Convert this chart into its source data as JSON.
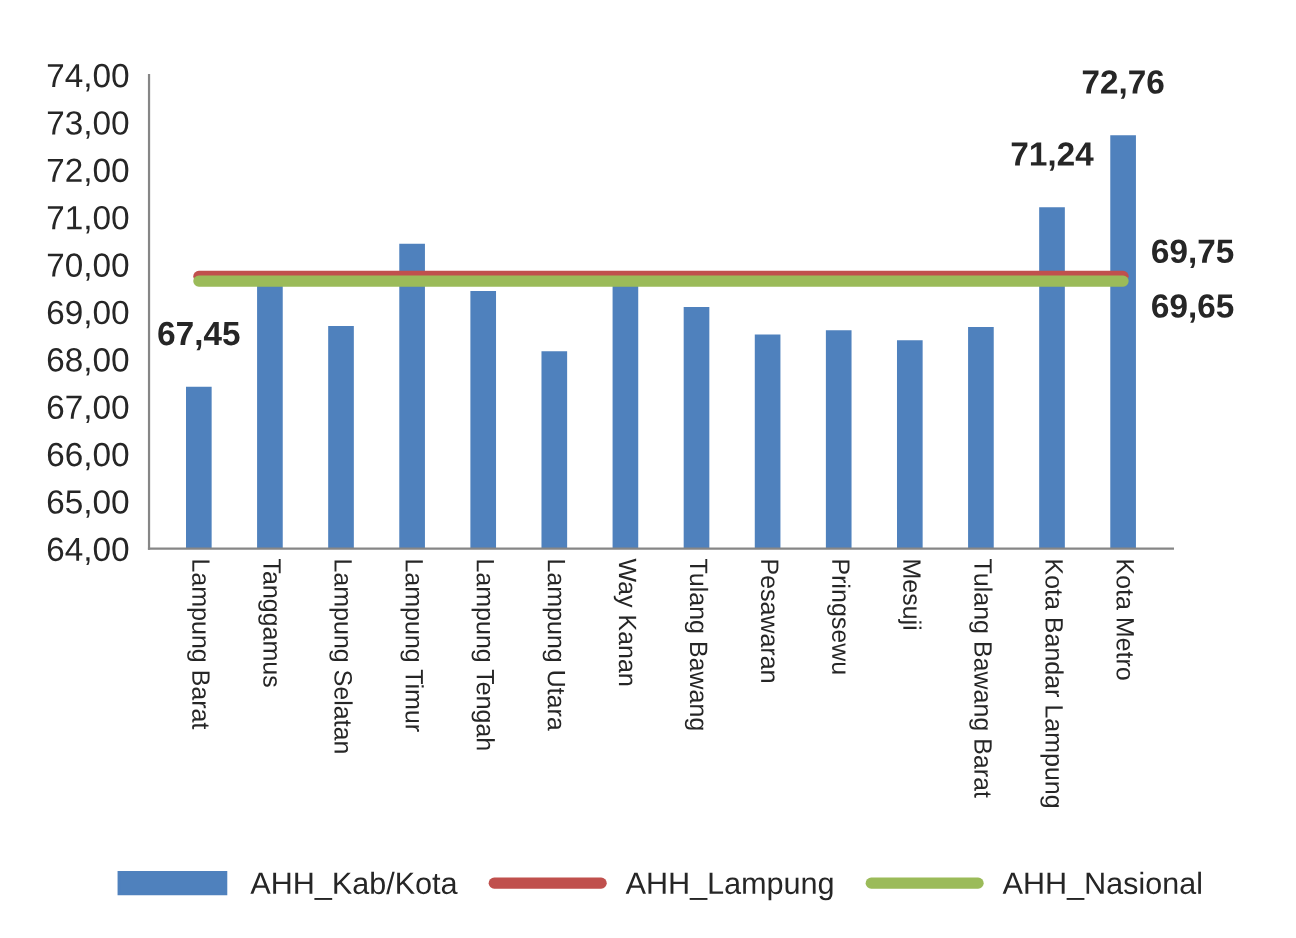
{
  "chart_data": {
    "type": "bar",
    "categories": [
      "Lampung Barat",
      "Tanggamus",
      "Lampung Selatan",
      "Lampung Timur",
      "Lampung Tengah",
      "Lampung Utara",
      "Way Kanan",
      "Tulang Bawang",
      "Pesawaran",
      "Pringsewu",
      "Mesuji",
      "Tulang Bawang Barat",
      "Kota Bandar Lampung",
      "Kota Metro"
    ],
    "series": [
      {
        "name": "AHH_Kab/Kota",
        "color": "#4f81bd",
        "values": [
          67.45,
          69.6,
          68.73,
          70.47,
          69.47,
          68.2,
          69.6,
          69.13,
          68.55,
          68.64,
          68.43,
          68.71,
          71.24,
          72.76
        ],
        "value_labels": [
          "67,45",
          null,
          null,
          null,
          null,
          null,
          null,
          null,
          null,
          null,
          null,
          null,
          "71,24",
          "72,76"
        ]
      },
      {
        "name": "AHH_Lampung",
        "type": "line",
        "color": "#c0504d",
        "values": [
          69.75,
          69.75,
          69.75,
          69.75,
          69.75,
          69.75,
          69.75,
          69.75,
          69.75,
          69.75,
          69.75,
          69.75,
          69.75,
          69.75
        ],
        "value_labels": [
          null,
          null,
          null,
          null,
          null,
          null,
          null,
          null,
          null,
          null,
          null,
          null,
          null,
          "69,75"
        ]
      },
      {
        "name": "AHH_Nasional",
        "type": "line",
        "color": "#9bbb59",
        "values": [
          69.65,
          69.65,
          69.65,
          69.65,
          69.65,
          69.65,
          69.65,
          69.65,
          69.65,
          69.65,
          69.65,
          69.65,
          69.65,
          69.65
        ],
        "value_labels": [
          null,
          null,
          null,
          null,
          null,
          null,
          null,
          null,
          null,
          null,
          null,
          null,
          null,
          "69,65"
        ]
      }
    ],
    "ylim": [
      64,
      74
    ],
    "yticks": [
      {
        "value": 64,
        "label": "64,00"
      },
      {
        "value": 65,
        "label": "65,00"
      },
      {
        "value": 66,
        "label": "66,00"
      },
      {
        "value": 67,
        "label": "67,00"
      },
      {
        "value": 68,
        "label": "68,00"
      },
      {
        "value": 69,
        "label": "69,00"
      },
      {
        "value": 70,
        "label": "70,00"
      },
      {
        "value": 71,
        "label": "71,00"
      },
      {
        "value": 72,
        "label": "72,00"
      },
      {
        "value": 73,
        "label": "73,00"
      },
      {
        "value": 74,
        "label": "74,00"
      }
    ],
    "grid": false,
    "legend": "bottom"
  }
}
